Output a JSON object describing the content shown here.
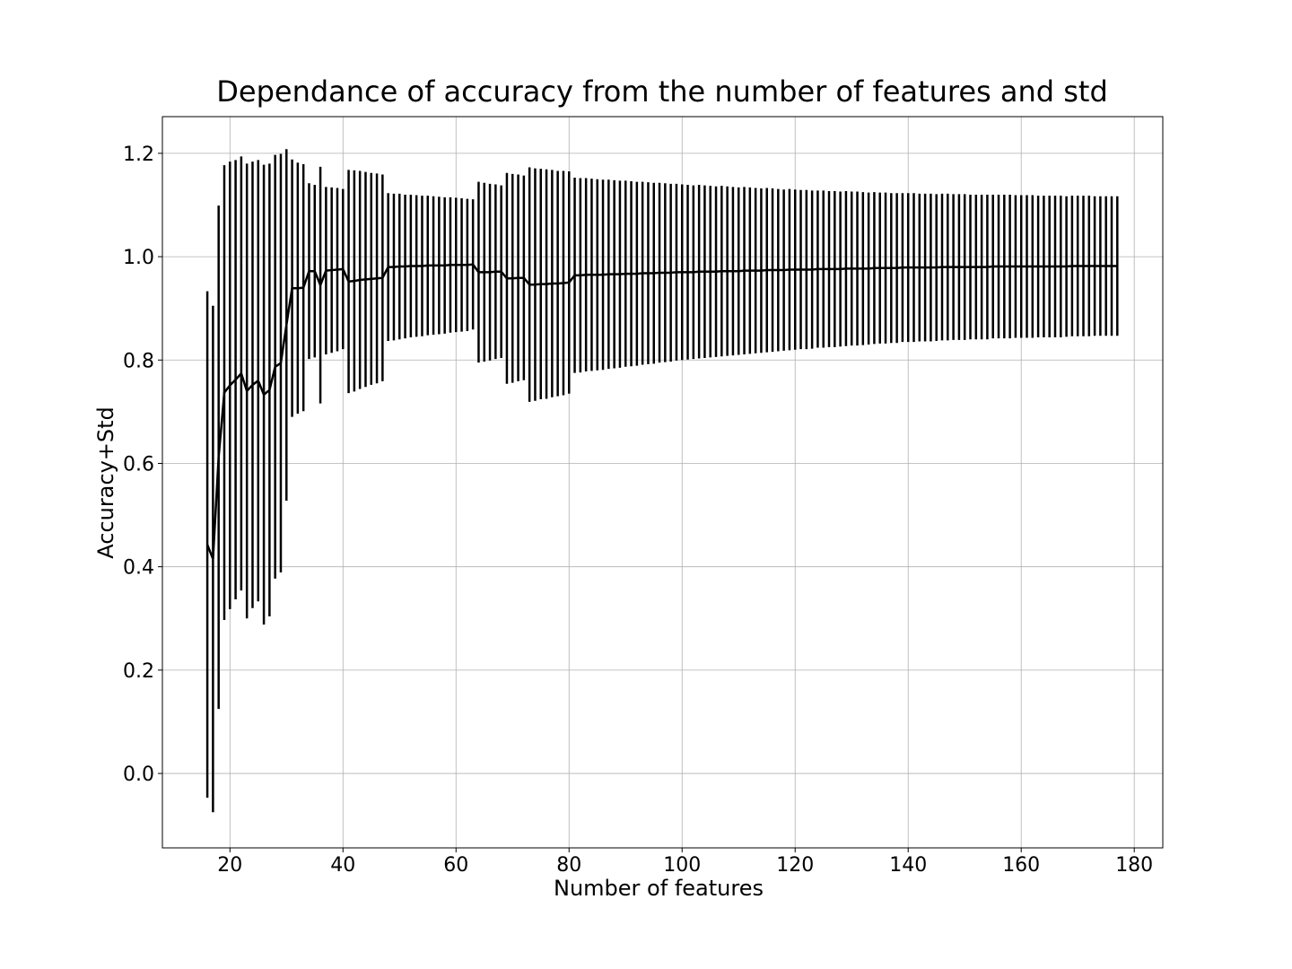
{
  "chart_data": {
    "type": "errorbar",
    "title": "Dependance of accuracy from the number of features and std",
    "xlabel": "Number of features",
    "ylabel": "Accuracy+Std",
    "color": "#000000",
    "grid": true,
    "xlim": [
      8.05,
      185.05
    ],
    "ylim": [
      -0.144,
      1.271
    ],
    "xticks": [
      20,
      40,
      60,
      80,
      100,
      120,
      140,
      160,
      180
    ],
    "yticks": [
      {
        "value": 0,
        "label": "0.0"
      },
      0.2,
      0.4,
      0.6,
      0.8,
      {
        "value": 1,
        "label": "1.0"
      },
      1.2
    ],
    "x": [
      16,
      17,
      18,
      19,
      20,
      21,
      22,
      23,
      24,
      25,
      26,
      27,
      28,
      29,
      30,
      31,
      32,
      33,
      34,
      35,
      36,
      37,
      38,
      39,
      40,
      41,
      42,
      43,
      44,
      45,
      46,
      47,
      48,
      49,
      50,
      51,
      52,
      53,
      54,
      55,
      56,
      57,
      58,
      59,
      60,
      61,
      62,
      63,
      64,
      65,
      66,
      67,
      68,
      69,
      70,
      71,
      72,
      73,
      74,
      75,
      76,
      77,
      78,
      79,
      80,
      81,
      82,
      83,
      84,
      85,
      86,
      87,
      88,
      89,
      90,
      91,
      92,
      93,
      94,
      95,
      96,
      97,
      98,
      99,
      100,
      101,
      102,
      103,
      104,
      105,
      106,
      107,
      108,
      109,
      110,
      111,
      112,
      113,
      114,
      115,
      116,
      117,
      118,
      119,
      120,
      121,
      122,
      123,
      124,
      125,
      126,
      127,
      128,
      129,
      130,
      131,
      132,
      133,
      134,
      135,
      136,
      137,
      138,
      139,
      140,
      141,
      142,
      143,
      144,
      145,
      146,
      147,
      148,
      149,
      150,
      151,
      152,
      153,
      154,
      155,
      156,
      157,
      158,
      159,
      160,
      161,
      162,
      163,
      164,
      165,
      166,
      167,
      168,
      169,
      170,
      171,
      172,
      173,
      174,
      175,
      176,
      177
    ],
    "values": [
      0.443,
      0.415,
      0.612,
      0.737,
      0.751,
      0.762,
      0.774,
      0.74,
      0.752,
      0.76,
      0.733,
      0.742,
      0.787,
      0.794,
      0.868,
      0.939,
      0.939,
      0.94,
      0.972,
      0.972,
      0.945,
      0.973,
      0.974,
      0.975,
      0.976,
      0.952,
      0.953,
      0.955,
      0.956,
      0.957,
      0.958,
      0.959,
      0.98,
      0.98,
      0.981,
      0.981,
      0.982,
      0.982,
      0.982,
      0.983,
      0.983,
      0.983,
      0.983,
      0.984,
      0.984,
      0.984,
      0.984,
      0.985,
      0.97,
      0.97,
      0.97,
      0.971,
      0.971,
      0.958,
      0.958,
      0.959,
      0.959,
      0.946,
      0.946,
      0.947,
      0.947,
      0.948,
      0.948,
      0.949,
      0.95,
      0.964,
      0.964,
      0.965,
      0.965,
      0.965,
      0.965,
      0.966,
      0.966,
      0.966,
      0.967,
      0.967,
      0.967,
      0.968,
      0.968,
      0.968,
      0.969,
      0.969,
      0.969,
      0.97,
      0.97,
      0.97,
      0.97,
      0.971,
      0.971,
      0.971,
      0.971,
      0.972,
      0.972,
      0.972,
      0.972,
      0.973,
      0.973,
      0.973,
      0.973,
      0.974,
      0.974,
      0.974,
      0.974,
      0.975,
      0.975,
      0.975,
      0.975,
      0.975,
      0.976,
      0.976,
      0.976,
      0.976,
      0.976,
      0.977,
      0.977,
      0.977,
      0.977,
      0.977,
      0.978,
      0.978,
      0.978,
      0.978,
      0.978,
      0.979,
      0.979,
      0.979,
      0.979,
      0.979,
      0.979,
      0.979,
      0.98,
      0.98,
      0.98,
      0.98,
      0.98,
      0.98,
      0.98,
      0.98,
      0.98,
      0.981,
      0.981,
      0.981,
      0.981,
      0.981,
      0.981,
      0.981,
      0.981,
      0.981,
      0.981,
      0.981,
      0.981,
      0.981,
      0.981,
      0.982,
      0.982,
      0.982,
      0.982,
      0.982,
      0.982,
      0.982,
      0.982,
      0.982
    ],
    "errors": [
      0.49,
      0.49,
      0.487,
      0.44,
      0.433,
      0.425,
      0.42,
      0.44,
      0.432,
      0.427,
      0.445,
      0.438,
      0.41,
      0.405,
      0.34,
      0.249,
      0.243,
      0.239,
      0.17,
      0.167,
      0.229,
      0.162,
      0.16,
      0.158,
      0.155,
      0.216,
      0.214,
      0.211,
      0.208,
      0.205,
      0.203,
      0.2,
      0.143,
      0.142,
      0.141,
      0.139,
      0.138,
      0.137,
      0.136,
      0.135,
      0.134,
      0.133,
      0.132,
      0.131,
      0.13,
      0.129,
      0.128,
      0.126,
      0.175,
      0.173,
      0.171,
      0.169,
      0.167,
      0.204,
      0.202,
      0.2,
      0.198,
      0.227,
      0.225,
      0.223,
      0.222,
      0.22,
      0.218,
      0.217,
      0.215,
      0.189,
      0.188,
      0.187,
      0.186,
      0.185,
      0.184,
      0.183,
      0.182,
      0.181,
      0.18,
      0.179,
      0.178,
      0.177,
      0.176,
      0.175,
      0.174,
      0.173,
      0.172,
      0.171,
      0.17,
      0.169,
      0.168,
      0.168,
      0.167,
      0.166,
      0.165,
      0.165,
      0.164,
      0.163,
      0.162,
      0.162,
      0.161,
      0.16,
      0.159,
      0.159,
      0.158,
      0.157,
      0.156,
      0.156,
      0.155,
      0.154,
      0.154,
      0.153,
      0.152,
      0.152,
      0.151,
      0.151,
      0.15,
      0.15,
      0.149,
      0.149,
      0.148,
      0.147,
      0.147,
      0.146,
      0.146,
      0.145,
      0.145,
      0.144,
      0.144,
      0.144,
      0.143,
      0.143,
      0.143,
      0.142,
      0.142,
      0.142,
      0.141,
      0.141,
      0.141,
      0.14,
      0.14,
      0.14,
      0.14,
      0.139,
      0.139,
      0.139,
      0.139,
      0.138,
      0.138,
      0.138,
      0.138,
      0.137,
      0.137,
      0.137,
      0.137,
      0.137,
      0.136,
      0.136,
      0.136,
      0.136,
      0.136,
      0.135,
      0.135,
      0.135,
      0.135,
      0.135
    ]
  }
}
